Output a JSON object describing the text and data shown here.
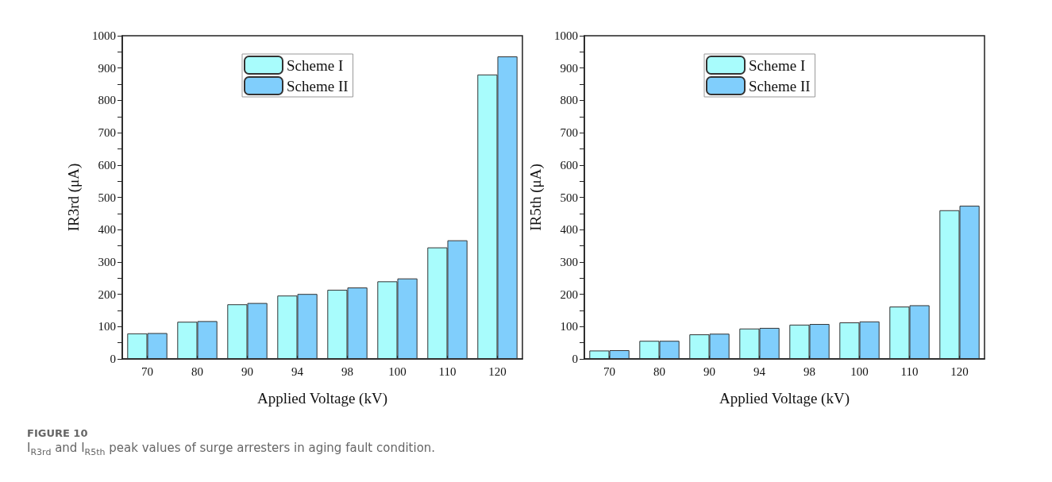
{
  "chart_data": [
    {
      "type": "bar",
      "xlabel": "Applied Voltage (kV)",
      "ylabel": "IR3rd (μA)",
      "categories": [
        "70",
        "80",
        "90",
        "94",
        "98",
        "100",
        "110",
        "120"
      ],
      "series": [
        {
          "name": "Scheme I",
          "color": "#a8fcfc",
          "values": [
            79,
            115,
            169,
            196,
            214,
            240,
            345,
            880
          ]
        },
        {
          "name": "Scheme II",
          "color": "#80cefc",
          "values": [
            80,
            117,
            173,
            201,
            221,
            249,
            367,
            936
          ]
        }
      ],
      "ylim": [
        0,
        1000
      ],
      "yticks": [
        0,
        {
          "value": 50,
          "label": null
        },
        100,
        {
          "value": 150,
          "label": null
        },
        200,
        {
          "value": 250,
          "label": null
        },
        300,
        {
          "value": 350,
          "label": null
        },
        400,
        {
          "value": 450,
          "label": null
        },
        500,
        {
          "value": 550,
          "label": null
        },
        600,
        {
          "value": 650,
          "label": null
        },
        700,
        {
          "value": 750,
          "label": null
        },
        800,
        {
          "value": 850,
          "label": null
        },
        900,
        {
          "value": 950,
          "label": null
        },
        1000
      ],
      "grid": false,
      "legend": "top",
      "annotations": [
        "FIGURE 10",
        "I$_{R3rd}$ and I$_{R5th}$ peak values of surge arresters in aging fault condition."
      ]
    },
    {
      "type": "bar",
      "xlabel": "Applied Voltage (kV)",
      "ylabel": "IR5th (μA)",
      "categories": [
        "70",
        "80",
        "90",
        "94",
        "98",
        "100",
        "110",
        "120"
      ],
      "series": [
        {
          "name": "Scheme I",
          "color": "#a8fcfc",
          "values": [
            26,
            56,
            76,
            94,
            106,
            113,
            162,
            460
          ]
        },
        {
          "name": "Scheme II",
          "color": "#80cefc",
          "values": [
            27,
            56,
            78,
            96,
            108,
            116,
            166,
            474
          ]
        }
      ],
      "ylim": [
        0,
        1000
      ],
      "yticks": [
        0,
        {
          "value": 50,
          "label": null
        },
        100,
        {
          "value": 150,
          "label": null
        },
        200,
        {
          "value": 250,
          "label": null
        },
        300,
        {
          "value": 350,
          "label": null
        },
        400,
        {
          "value": 450,
          "label": null
        },
        500,
        {
          "value": 550,
          "label": null
        },
        600,
        {
          "value": 650,
          "label": null
        },
        700,
        {
          "value": 750,
          "label": null
        },
        800,
        {
          "value": 850,
          "label": null
        },
        900,
        {
          "value": 950,
          "label": null
        },
        1000
      ],
      "grid": false,
      "legend": "top"
    }
  ]
}
